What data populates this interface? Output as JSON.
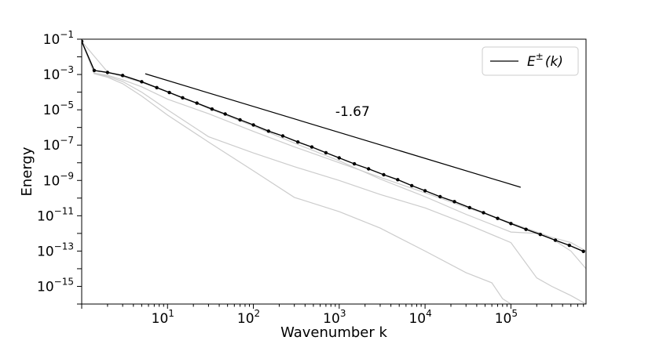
{
  "chart_data": {
    "type": "line",
    "xlabel": "Wavenumber k",
    "ylabel": "Energy",
    "x_scale": "log",
    "y_scale": "log",
    "xlim": [
      1,
      750000
    ],
    "ylim": [
      1e-16,
      0.1
    ],
    "x_ticks": [
      {
        "value": 10,
        "base": "10",
        "exp": "1"
      },
      {
        "value": 100,
        "base": "10",
        "exp": "2"
      },
      {
        "value": 1000,
        "base": "10",
        "exp": "3"
      },
      {
        "value": 10000,
        "base": "10",
        "exp": "4"
      },
      {
        "value": 100000,
        "base": "10",
        "exp": "5"
      }
    ],
    "y_ticks": [
      {
        "value": 0.1,
        "base": "10",
        "exp": "−1"
      },
      {
        "value": 0.001,
        "base": "10",
        "exp": "−3"
      },
      {
        "value": 1e-05,
        "base": "10",
        "exp": "−5"
      },
      {
        "value": 1e-07,
        "base": "10",
        "exp": "−7"
      },
      {
        "value": 1e-09,
        "base": "10",
        "exp": "−9"
      },
      {
        "value": 1e-11,
        "base": "10",
        "exp": "−11"
      },
      {
        "value": 1e-13,
        "base": "10",
        "exp": "−13"
      },
      {
        "value": 1e-15,
        "base": "10",
        "exp": "−15"
      }
    ],
    "grid": false,
    "legend": {
      "position": "top-right",
      "entries": [
        {
          "label": "E ± (k)",
          "base": "E",
          "sup": "±",
          "suffix": "(k)",
          "color": "#000000"
        }
      ]
    },
    "fit_line": {
      "label": "-1.67",
      "slope": -1.67,
      "x": [
        5.5,
        130000
      ],
      "y": [
        0.0011,
        4.1e-10
      ],
      "label_at": {
        "x": 900,
        "y": 4.5e-06
      }
    },
    "series": [
      {
        "label": "E ± (k)",
        "color": "#000000",
        "markers": true,
        "x": [
          1,
          1.4,
          2,
          3,
          5,
          7.5,
          10.5,
          15,
          22,
          33,
          47,
          70,
          100,
          150,
          220,
          330,
          480,
          700,
          1000,
          1500,
          2200,
          3300,
          4800,
          7000,
          10000,
          15000,
          22000,
          33000,
          48000,
          70000,
          100000,
          150000,
          220000,
          330000,
          480000,
          700000
        ],
        "y": [
          0.075,
          0.0017,
          0.0013,
          0.00088,
          0.00039,
          0.00018,
          9.5e-05,
          4.8e-05,
          2.4e-05,
          1.1e-05,
          5.8e-06,
          2.7e-06,
          1.4e-06,
          6.2e-07,
          3.3e-07,
          1.5e-07,
          7.8e-08,
          3.7e-08,
          1.9e-08,
          8.7e-09,
          4.5e-09,
          2.1e-09,
          1.1e-09,
          5.1e-10,
          2.6e-10,
          1.2e-10,
          6.3e-11,
          2.9e-11,
          1.5e-11,
          7.1e-12,
          3.6e-12,
          1.7e-12,
          8.7e-13,
          4.1e-13,
          2.1e-13,
          9.6e-14
        ]
      },
      {
        "label": "",
        "color": "#cccccc",
        "markers": false,
        "x": [
          1,
          1.4,
          2,
          3,
          5,
          10,
          30,
          100,
          300,
          1000,
          3000,
          10000,
          30000,
          100000,
          300000,
          500000,
          750000
        ],
        "y": [
          0.075,
          0.0012,
          0.0009,
          0.0005,
          0.0002,
          4e-05,
          6e-06,
          6e-07,
          8e-08,
          1e-08,
          1.5e-09,
          2e-10,
          3e-11,
          4e-12,
          6e-13,
          3e-13,
          1e-13
        ]
      },
      {
        "label": "",
        "color": "#cccccc",
        "markers": false,
        "x": [
          1,
          1.4,
          2,
          3,
          5,
          10,
          30,
          100,
          300,
          1000,
          3000,
          10000,
          30000,
          100000,
          200000,
          300000,
          500000,
          750000
        ],
        "y": [
          0.075,
          0.0011,
          0.0008,
          0.0004,
          0.0001,
          1e-05,
          3e-07,
          3.6e-08,
          6e-09,
          1e-09,
          1.6e-10,
          2.8e-11,
          3.5e-12,
          3e-13,
          3e-15,
          1e-15,
          3e-16,
          1e-16
        ]
      },
      {
        "label": "",
        "color": "#cccccc",
        "markers": false,
        "x": [
          1,
          1.4,
          2,
          3,
          5,
          10,
          30,
          100,
          300,
          1000,
          3000,
          10000,
          30000,
          60000,
          80000,
          100000
        ],
        "y": [
          0.075,
          0.0011,
          0.0007,
          0.0003,
          6e-05,
          5e-06,
          1.5e-07,
          3.5e-09,
          1.1e-10,
          1.7e-11,
          2e-12,
          1e-13,
          6e-15,
          1.6e-15,
          2e-16,
          1e-16
        ]
      },
      {
        "label": "",
        "color": "#cccccc",
        "markers": false,
        "x": [
          1,
          2,
          5,
          10,
          30,
          100,
          300,
          1000,
          3000,
          10000,
          30000,
          100000,
          200000,
          300000,
          500000,
          750000
        ],
        "y": [
          0.075,
          0.0014,
          0.00035,
          0.00011,
          1.2e-05,
          1.2e-06,
          1.3e-07,
          1.3e-08,
          1.2e-09,
          1.2e-10,
          1.2e-11,
          1.2e-12,
          1e-12,
          5e-13,
          1e-13,
          1e-14
        ]
      }
    ]
  }
}
